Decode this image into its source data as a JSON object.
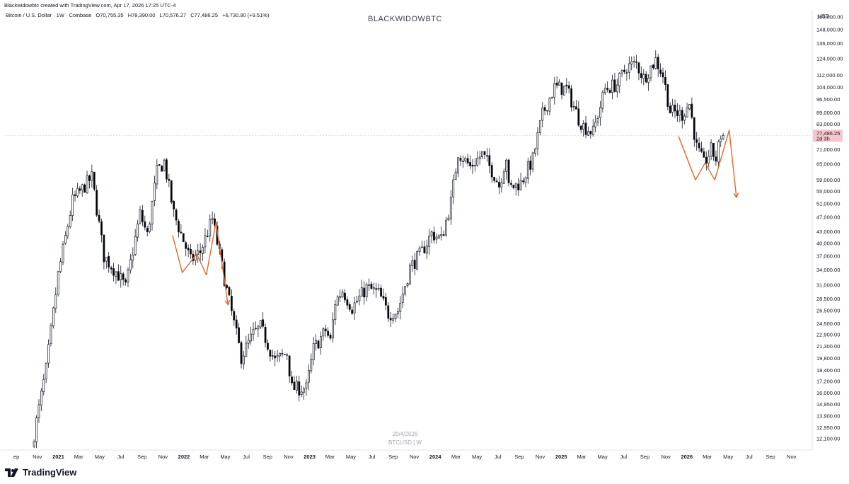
{
  "attribution": "Blackwidowbtc created with TradingView.com, Apr 17, 2026 17:25 UTC-4",
  "legend": {
    "symbol": "Bitcoin / U.S. Dollar · 1W · Coinbase",
    "open": "O70,755.35",
    "high": "H78,390.00",
    "low": "L70,576.27",
    "close": "C77,486.25",
    "change": "+6,730.90 (+9.51%)"
  },
  "watermark_title": "BLACKWIDOWBTC",
  "watermark_date": "20/4/2026",
  "watermark_symbol": "BTCUSD | W",
  "logo_text": "TradingView",
  "colors": {
    "candle_up": "#ffffff",
    "candle_down": "#000000",
    "wick": "#131722",
    "annotation": "#e8652a",
    "price_label_bg": "#f7c5cc",
    "axis_text": "#131722",
    "current_line": "#d9d9d9"
  },
  "chart_data": {
    "type": "candlestick",
    "interval": "1W",
    "scale": "log",
    "y_unit": "USD",
    "y_ticks": [
      12100,
      12950,
      13900,
      14950,
      16000,
      17200,
      18400,
      19800,
      21300,
      22900,
      24500,
      26500,
      28500,
      31000,
      34000,
      37000,
      40000,
      43000,
      47000,
      51000,
      55000,
      59000,
      65000,
      71000,
      77486.25,
      83000,
      89000,
      96500,
      104000,
      112000,
      124000,
      136000,
      148000,
      160000
    ],
    "y_tick_labels": [
      "12,100.00",
      "12,950.00",
      "13,900.00",
      "14,950.00",
      "16,000.00",
      "17,200.00",
      "18,400.00",
      "19,800.00",
      "21,300.00",
      "22,900.00",
      "24,500.00",
      "26,500.00",
      "28,500.00",
      "31,000.00",
      "34,000.00",
      "37,000.00",
      "40,000.00",
      "43,000.00",
      "47,000.00",
      "51,000.00",
      "55,000.00",
      "59,000.00",
      "65,000.00",
      "71,000.00",
      "",
      "83,000.00",
      "89,000.00",
      "96,500.00",
      "104,000.00",
      "112,000.00",
      "124,000.00",
      "136,000.00",
      "148,000.00",
      "160,000.00"
    ],
    "current_price": {
      "value": 77486.25,
      "label": "77,486.25",
      "countdown": "2d 3h"
    },
    "x_ticks": [
      {
        "label": "ep",
        "date": "2020-09-01",
        "bold": false
      },
      {
        "label": "Nov",
        "date": "2020-11-01",
        "bold": false
      },
      {
        "label": "2021",
        "date": "2021-01-01",
        "bold": true
      },
      {
        "label": "Mar",
        "date": "2021-03-01",
        "bold": false
      },
      {
        "label": "May",
        "date": "2021-05-01",
        "bold": false
      },
      {
        "label": "Jul",
        "date": "2021-07-01",
        "bold": false
      },
      {
        "label": "Sep",
        "date": "2021-09-01",
        "bold": false
      },
      {
        "label": "Nov",
        "date": "2021-11-01",
        "bold": false
      },
      {
        "label": "2022",
        "date": "2022-01-01",
        "bold": true
      },
      {
        "label": "Mar",
        "date": "2022-03-01",
        "bold": false
      },
      {
        "label": "May",
        "date": "2022-05-01",
        "bold": false
      },
      {
        "label": "Jul",
        "date": "2022-07-01",
        "bold": false
      },
      {
        "label": "Sep",
        "date": "2022-09-01",
        "bold": false
      },
      {
        "label": "Nov",
        "date": "2022-11-01",
        "bold": false
      },
      {
        "label": "2023",
        "date": "2023-01-01",
        "bold": true
      },
      {
        "label": "Mar",
        "date": "2023-03-01",
        "bold": false
      },
      {
        "label": "May",
        "date": "2023-05-01",
        "bold": false
      },
      {
        "label": "Jul",
        "date": "2023-07-01",
        "bold": false
      },
      {
        "label": "Sep",
        "date": "2023-09-01",
        "bold": false
      },
      {
        "label": "Nov",
        "date": "2023-11-01",
        "bold": false
      },
      {
        "label": "2024",
        "date": "2024-01-01",
        "bold": true
      },
      {
        "label": "Mar",
        "date": "2024-03-01",
        "bold": false
      },
      {
        "label": "May",
        "date": "2024-05-01",
        "bold": false
      },
      {
        "label": "Jul",
        "date": "2024-07-01",
        "bold": false
      },
      {
        "label": "Sep",
        "date": "2024-09-01",
        "bold": false
      },
      {
        "label": "Nov",
        "date": "2024-11-01",
        "bold": false
      },
      {
        "label": "2025",
        "date": "2025-01-01",
        "bold": true
      },
      {
        "label": "Mar",
        "date": "2025-03-01",
        "bold": false
      },
      {
        "label": "May",
        "date": "2025-05-01",
        "bold": false
      },
      {
        "label": "Jul",
        "date": "2025-07-01",
        "bold": false
      },
      {
        "label": "Sep",
        "date": "2025-09-01",
        "bold": false
      },
      {
        "label": "Nov",
        "date": "2025-11-01",
        "bold": false
      },
      {
        "label": "2026",
        "date": "2026-01-01",
        "bold": true
      },
      {
        "label": "Mar",
        "date": "2026-03-01",
        "bold": false
      },
      {
        "label": "May",
        "date": "2026-05-01",
        "bold": false
      },
      {
        "label": "Jul",
        "date": "2026-07-01",
        "bold": false
      },
      {
        "label": "Sep",
        "date": "2026-09-01",
        "bold": false
      },
      {
        "label": "Nov",
        "date": "2026-11-01",
        "bold": false
      }
    ],
    "trend_waypoints": [
      [
        "2020-10-19",
        11500
      ],
      [
        "2020-11-30",
        18500
      ],
      [
        "2021-01-04",
        33000
      ],
      [
        "2021-02-15",
        52000
      ],
      [
        "2021-04-12",
        60000
      ],
      [
        "2021-05-17",
        37000
      ],
      [
        "2021-06-28",
        33000
      ],
      [
        "2021-07-19",
        30500
      ],
      [
        "2021-08-30",
        48000
      ],
      [
        "2021-09-20",
        42000
      ],
      [
        "2021-10-18",
        62000
      ],
      [
        "2021-11-08",
        66000
      ],
      [
        "2021-12-06",
        48000
      ],
      [
        "2022-01-24",
        36000
      ],
      [
        "2022-02-21",
        38000
      ],
      [
        "2022-03-28",
        46500
      ],
      [
        "2022-05-09",
        30000
      ],
      [
        "2022-06-20",
        20000
      ],
      [
        "2022-07-25",
        23000
      ],
      [
        "2022-08-15",
        24000
      ],
      [
        "2022-09-26",
        19500
      ],
      [
        "2022-10-31",
        20500
      ],
      [
        "2022-11-14",
        16500
      ],
      [
        "2022-12-26",
        16500
      ],
      [
        "2023-01-16",
        21000
      ],
      [
        "2023-02-20",
        23500
      ],
      [
        "2023-03-06",
        22000
      ],
      [
        "2023-03-20",
        28000
      ],
      [
        "2023-04-10",
        30000
      ],
      [
        "2023-05-08",
        27000
      ],
      [
        "2023-06-19",
        30500
      ],
      [
        "2023-07-24",
        29500
      ],
      [
        "2023-08-21",
        26000
      ],
      [
        "2023-09-18",
        26500
      ],
      [
        "2023-10-23",
        34500
      ],
      [
        "2023-11-27",
        38000
      ],
      [
        "2023-12-25",
        42500
      ],
      [
        "2024-01-22",
        41000
      ],
      [
        "2024-02-19",
        51500
      ],
      [
        "2024-03-11",
        70000
      ],
      [
        "2024-04-15",
        64000
      ],
      [
        "2024-05-20",
        69000
      ],
      [
        "2024-06-24",
        61000
      ],
      [
        "2024-07-08",
        57000
      ],
      [
        "2024-07-29",
        68000
      ],
      [
        "2024-08-05",
        56000
      ],
      [
        "2024-09-09",
        58000
      ],
      [
        "2024-10-14",
        67000
      ],
      [
        "2024-11-11",
        88000
      ],
      [
        "2024-12-16",
        104000
      ],
      [
        "2025-01-20",
        103000
      ],
      [
        "2025-02-24",
        86000
      ],
      [
        "2025-03-10",
        82000
      ],
      [
        "2025-04-07",
        79000
      ],
      [
        "2025-05-12",
        103000
      ],
      [
        "2025-06-16",
        106000
      ],
      [
        "2025-07-14",
        118000
      ],
      [
        "2025-08-11",
        120000
      ],
      [
        "2025-09-01",
        110000
      ],
      [
        "2025-10-06",
        123000
      ],
      [
        "2025-10-27",
        112000
      ],
      [
        "2025-11-17",
        90000
      ],
      [
        "2025-12-22",
        88000
      ],
      [
        "2026-01-12",
        94000
      ],
      [
        "2026-02-02",
        72000
      ],
      [
        "2026-02-23",
        65000
      ],
      [
        "2026-03-16",
        71000
      ],
      [
        "2026-03-30",
        67000
      ],
      [
        "2026-04-13",
        77486.25
      ]
    ],
    "annotations": [
      {
        "type": "zigzag",
        "points": [
          [
            "2021-11-29",
            42000
          ],
          [
            "2021-12-27",
            33500
          ],
          [
            "2022-02-07",
            37500
          ],
          [
            "2022-03-07",
            33000
          ],
          [
            "2022-04-04",
            45500
          ],
          [
            "2022-05-09",
            27500
          ]
        ],
        "arrow": true
      },
      {
        "type": "zigzag",
        "points": [
          [
            "2025-12-08",
            77000
          ],
          [
            "2026-01-26",
            59000
          ],
          [
            "2026-02-23",
            65500
          ],
          [
            "2026-03-23",
            59000
          ],
          [
            "2026-05-04",
            80000
          ],
          [
            "2026-05-25",
            53000
          ]
        ],
        "arrow": true
      }
    ]
  }
}
